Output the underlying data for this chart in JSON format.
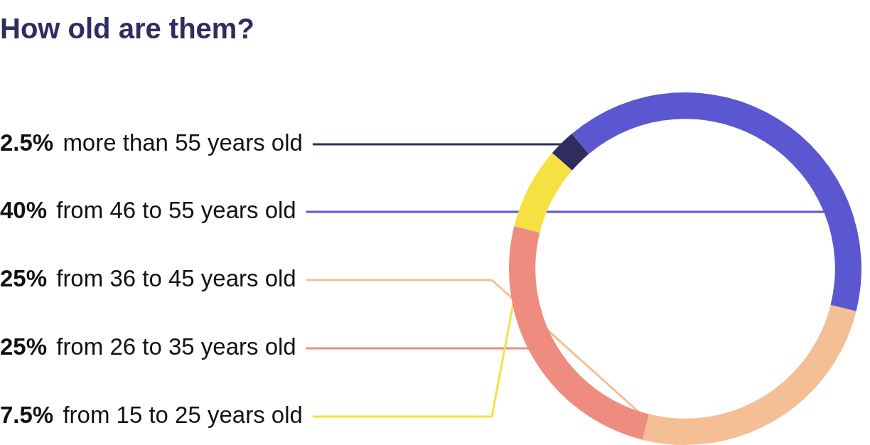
{
  "chart_data": {
    "type": "donut",
    "title": "How old are them?",
    "categories": [
      "more than 55 years old",
      "from 46 to 55 years old",
      "from 36 to 45 years old",
      "from 26 to 35 years old",
      "from 15 to 25 years old"
    ],
    "values": [
      2.5,
      40,
      25,
      25,
      7.5
    ],
    "value_labels": [
      "2.5%",
      "40%",
      "25%",
      "25%",
      "7.5%"
    ],
    "colors": [
      "#2e2d5e",
      "#5b57d1",
      "#f5bf96",
      "#ef8c80",
      "#f5e142"
    ]
  }
}
